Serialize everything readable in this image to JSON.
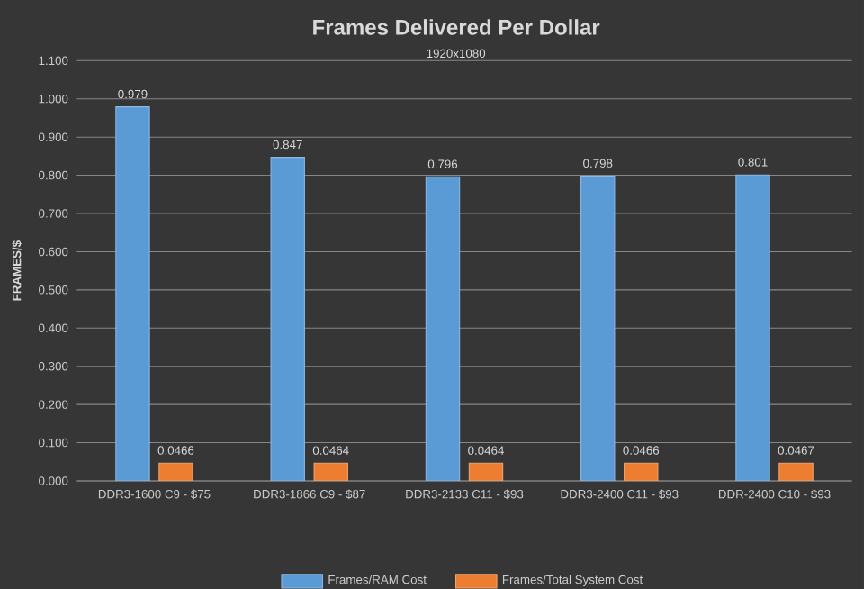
{
  "chart_data": {
    "type": "bar",
    "title": "Frames Delivered Per Dollar",
    "subtitle": "1920x1080",
    "ylabel": "FRAMES/$",
    "categories": [
      "DDR3-1600 C9 - $75",
      "DDR3-1866 C9 - $87",
      "DDR3-2133 C11 - $93",
      "DDR3-2400 C11 - $93",
      "DDR-2400 C10 - $93"
    ],
    "series": [
      {
        "name": "Frames/RAM Cost",
        "color": "#5b9bd5",
        "values": [
          0.979,
          0.847,
          0.796,
          0.798,
          0.801
        ]
      },
      {
        "name": "Frames/Total System Cost",
        "color": "#ed7d31",
        "values": [
          0.0466,
          0.0464,
          0.0464,
          0.0466,
          0.0467
        ]
      }
    ],
    "ylim": [
      0,
      1.1
    ],
    "yticks": [
      {
        "value": 0,
        "label": "0.000"
      },
      {
        "value": 0.1,
        "label": "0.100"
      },
      {
        "value": 0.2,
        "label": "0.200"
      },
      {
        "value": 0.3,
        "label": "0.300"
      },
      {
        "value": 0.4,
        "label": "0.400"
      },
      {
        "value": 0.5,
        "label": "0.500"
      },
      {
        "value": 0.6,
        "label": "0.600"
      },
      {
        "value": 0.7,
        "label": "0.700"
      },
      {
        "value": 0.8,
        "label": "0.800"
      },
      {
        "value": 0.9,
        "label": "0.900"
      },
      {
        "value": 1.0,
        "label": "1.000"
      },
      {
        "value": 1.1,
        "label": "1.100"
      }
    ],
    "grid": "y",
    "legend": "bottom",
    "data_labels": true
  }
}
